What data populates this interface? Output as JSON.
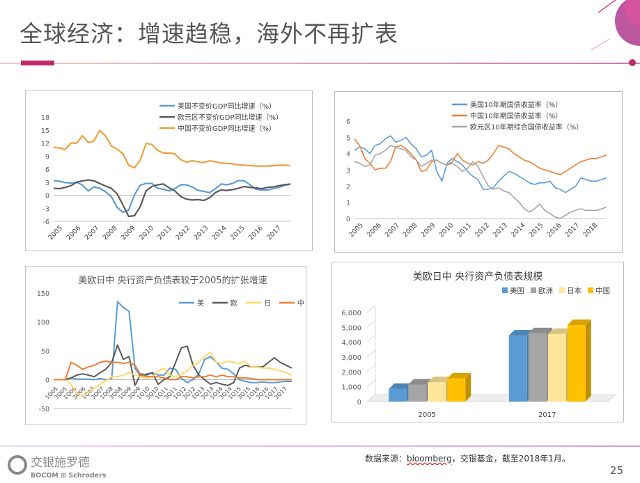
{
  "slide": {
    "title": "全球经济：增速趋稳，海外不再扩表",
    "source_prefix": "数据来源：",
    "source_link": "bloomberg",
    "source_suffix": "，交银基金，截至2018年1月。",
    "page_number": "25",
    "logo_cn": "交银施罗德",
    "logo_en": "BOCOM ⊞ Schroders"
  },
  "chart_data": [
    {
      "id": "gdp",
      "type": "line",
      "title": "",
      "ylim": [
        -6,
        18
      ],
      "yticks": [
        "18",
        "15",
        "12",
        "9",
        "6",
        "3",
        "0",
        "-3",
        "-6"
      ],
      "xlabels": [
        "2005",
        "2006",
        "2007",
        "2008",
        "2009",
        "2010",
        "2011",
        "2012",
        "2013",
        "2014",
        "2015",
        "2016",
        "2017"
      ],
      "series": [
        {
          "name": "美国不变价GDP同比增速（%）",
          "color": "#5b9bd5",
          "values": [
            3.4,
            3.2,
            2.9,
            2.8,
            3.0,
            2.3,
            1.0,
            1.9,
            1.6,
            0.8,
            -0.3,
            -2.8,
            -3.9,
            -3.4,
            0.1,
            2.3,
            2.7,
            2.7,
            1.6,
            1.4,
            1.0,
            1.5,
            2.4,
            2.4,
            1.9,
            1.1,
            0.9,
            0.6,
            1.5,
            2.6,
            2.4,
            2.7,
            3.4,
            3.3,
            2.4,
            1.4,
            1.2,
            1.2,
            1.5,
            1.8,
            2.3,
            2.5
          ]
        },
        {
          "name": "欧元区不变价GDP同比增速（%）",
          "color": "#595959",
          "values": [
            1.6,
            1.5,
            1.8,
            2.2,
            3.0,
            3.3,
            3.5,
            3.3,
            2.7,
            2.1,
            1.6,
            0.3,
            -2.2,
            -4.9,
            -4.7,
            -2.6,
            1.0,
            2.0,
            2.4,
            2.6,
            1.7,
            1.0,
            -0.3,
            -0.9,
            -1.1,
            -1.0,
            -1.2,
            -0.6,
            0.6,
            1.2,
            1.1,
            1.3,
            1.6,
            2.0,
            1.8,
            1.7,
            1.5,
            1.8,
            1.9,
            2.2,
            2.4,
            2.6
          ]
        },
        {
          "name": "中国不变价GDP同比增速（%）",
          "color": "#ed9f3a",
          "values": [
            11.0,
            10.9,
            10.5,
            12.0,
            12.0,
            13.7,
            12.1,
            12.5,
            14.9,
            13.6,
            11.3,
            10.6,
            9.5,
            6.9,
            6.3,
            8.1,
            11.9,
            11.7,
            10.3,
            9.7,
            9.7,
            9.5,
            8.2,
            7.6,
            7.9,
            7.7,
            7.5,
            7.9,
            7.7,
            7.4,
            7.3,
            7.2,
            7.0,
            6.9,
            6.8,
            6.7,
            6.7,
            6.7,
            6.8,
            6.9,
            6.9,
            6.8
          ]
        }
      ]
    },
    {
      "id": "yield",
      "type": "line",
      "title": "",
      "ylim": [
        0,
        6
      ],
      "yticks": [
        "6",
        "5",
        "4",
        "3",
        "2",
        "1",
        "0"
      ],
      "xlabels": [
        "2005",
        "2006",
        "2007",
        "2008",
        "2009",
        "2010",
        "2011",
        "2012",
        "2013",
        "2014",
        "2015",
        "2016",
        "2017",
        "2018"
      ],
      "series": [
        {
          "name": "美国10年期国债收益率（%）",
          "color": "#5b9bd5",
          "values": [
            4.2,
            4.4,
            4.3,
            4.0,
            4.5,
            4.6,
            4.9,
            5.1,
            4.7,
            4.8,
            5.0,
            4.6,
            4.3,
            3.8,
            3.9,
            4.2,
            2.9,
            2.3,
            3.4,
            3.7,
            3.5,
            3.3,
            2.9,
            2.6,
            2.4,
            1.8,
            1.8,
            1.9,
            2.3,
            2.6,
            2.9,
            2.8,
            2.6,
            2.4,
            2.2,
            2.1,
            2.2,
            2.2,
            2.3,
            1.9,
            1.8,
            1.6,
            1.8,
            2.0,
            2.5,
            2.4,
            2.3,
            2.3,
            2.4,
            2.5
          ]
        },
        {
          "name": "中国10年期国债收益率（%）",
          "color": "#ed7d31",
          "values": [
            4.9,
            4.5,
            3.7,
            3.4,
            3.0,
            3.1,
            3.1,
            3.5,
            4.4,
            4.5,
            4.3,
            4.0,
            3.6,
            2.9,
            3.0,
            3.5,
            3.6,
            3.4,
            3.3,
            3.5,
            4.0,
            3.6,
            3.4,
            3.3,
            3.5,
            3.4,
            3.6,
            4.0,
            4.5,
            4.4,
            4.3,
            4.0,
            3.8,
            3.6,
            3.5,
            3.3,
            3.1,
            3.0,
            2.9,
            2.8,
            2.7,
            2.9,
            3.1,
            3.3,
            3.5,
            3.6,
            3.7,
            3.7,
            3.8,
            3.9
          ]
        },
        {
          "name": "欧元区10年期综合国债收益率（%）",
          "color": "#a5a5a5",
          "values": [
            3.5,
            3.4,
            3.2,
            3.3,
            3.9,
            4.0,
            4.2,
            4.5,
            4.4,
            4.3,
            4.2,
            3.8,
            3.6,
            3.2,
            3.4,
            3.6,
            3.6,
            3.4,
            3.3,
            3.4,
            3.2,
            2.9,
            3.1,
            3.5,
            3.2,
            2.6,
            2.0,
            1.8,
            1.9,
            1.7,
            1.6,
            1.3,
            1.0,
            0.6,
            0.4,
            0.6,
            0.9,
            0.5,
            0.3,
            0.1,
            0.0,
            0.2,
            0.4,
            0.5,
            0.6,
            0.5,
            0.5,
            0.5,
            0.6,
            0.7
          ]
        }
      ]
    },
    {
      "id": "cb_growth",
      "type": "line",
      "title": "美欧日中 央行资产负债表较于2005的扩张增速",
      "ylim": [
        -50,
        150
      ],
      "yticks": [
        "150",
        "100",
        "50",
        "0",
        "-50"
      ],
      "xlabels": [
        "1Q05",
        "3Q05",
        "1Q06",
        "3Q06",
        "1Q07",
        "3Q07",
        "1Q08",
        "3Q08",
        "1Q09",
        "3Q09",
        "1Q10",
        "3Q10",
        "1Q11",
        "3Q11",
        "1Q12",
        "3Q12",
        "1Q13",
        "3Q13",
        "1Q14",
        "3Q14",
        "1Q15",
        "3Q15",
        "1Q16",
        "3Q16",
        "1Q17",
        "3Q17"
      ],
      "series": [
        {
          "name": "美",
          "color": "#5b9bd5",
          "values": [
            0,
            0,
            0,
            3,
            1,
            1,
            1,
            0,
            2,
            0,
            2,
            135,
            125,
            118,
            20,
            5,
            10,
            12,
            8,
            8,
            20,
            18,
            2,
            -5,
            0,
            10,
            35,
            40,
            30,
            20,
            18,
            10,
            0,
            -3,
            -5,
            -5,
            -4,
            -5,
            -5,
            -4,
            -3,
            -3
          ]
        },
        {
          "name": "欧",
          "color": "#595959",
          "values": [
            0,
            0,
            0,
            3,
            8,
            10,
            8,
            5,
            12,
            18,
            30,
            60,
            35,
            40,
            -10,
            10,
            8,
            12,
            -8,
            0,
            5,
            30,
            55,
            58,
            25,
            8,
            0,
            -8,
            -5,
            -8,
            -10,
            -5,
            20,
            25,
            22,
            22,
            22,
            30,
            38,
            30,
            25,
            20
          ]
        },
        {
          "name": "日",
          "color": "#ffd966",
          "values": [
            0,
            0,
            0,
            -8,
            -25,
            -28,
            -22,
            -15,
            -8,
            -2,
            5,
            5,
            8,
            12,
            8,
            5,
            2,
            5,
            15,
            20,
            8,
            5,
            10,
            15,
            25,
            30,
            40,
            48,
            30,
            28,
            32,
            30,
            28,
            32,
            22,
            22,
            20,
            20,
            18,
            15,
            12,
            8
          ]
        },
        {
          "name": "中",
          "color": "#ed7d31",
          "values": [
            0,
            0,
            0,
            30,
            25,
            18,
            22,
            25,
            30,
            32,
            30,
            30,
            28,
            30,
            25,
            8,
            5,
            5,
            5,
            3,
            0,
            0,
            5,
            5,
            3,
            5,
            5,
            8,
            5,
            8,
            5,
            5,
            3,
            3,
            2,
            0,
            0,
            0,
            0,
            0,
            0,
            0
          ]
        }
      ]
    },
    {
      "id": "cb_size",
      "type": "bar",
      "title": "美欧日中 央行资产负债表规模",
      "categories": [
        "2005",
        "2017"
      ],
      "ylim": [
        0,
        6000
      ],
      "yticks": [
        "6,000",
        "5,000",
        "4,000",
        "3,000",
        "2,000",
        "1,000",
        "0"
      ],
      "series": [
        {
          "name": "美国",
          "color": "#5b9bd5",
          "values": [
            850,
            4450
          ]
        },
        {
          "name": "欧洲",
          "color": "#a5a5a5",
          "values": [
            1150,
            4600
          ]
        },
        {
          "name": "日本",
          "color": "#ffe699",
          "values": [
            1300,
            4550
          ]
        },
        {
          "name": "中国",
          "color": "#ffc000",
          "values": [
            1550,
            5150
          ]
        }
      ]
    }
  ]
}
